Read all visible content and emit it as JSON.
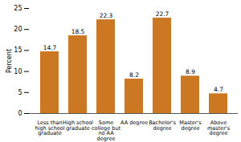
{
  "chart_data": {
    "type": "bar",
    "y_label": "Percent",
    "categories": [
      "Less than high school graduate",
      "High school graduate",
      "Some college but no AA degree",
      "AA degree",
      "Bachelor's degree",
      "Master's degree",
      "Above master's degree"
    ],
    "values": [
      14.7,
      18.5,
      22.3,
      8.2,
      22.7,
      8.9,
      4.7
    ],
    "color": "#cc7722",
    "ylim": [
      0,
      25
    ],
    "yticks": [
      0,
      5,
      10,
      15,
      20,
      25
    ],
    "grid": false,
    "data_labels": true
  }
}
